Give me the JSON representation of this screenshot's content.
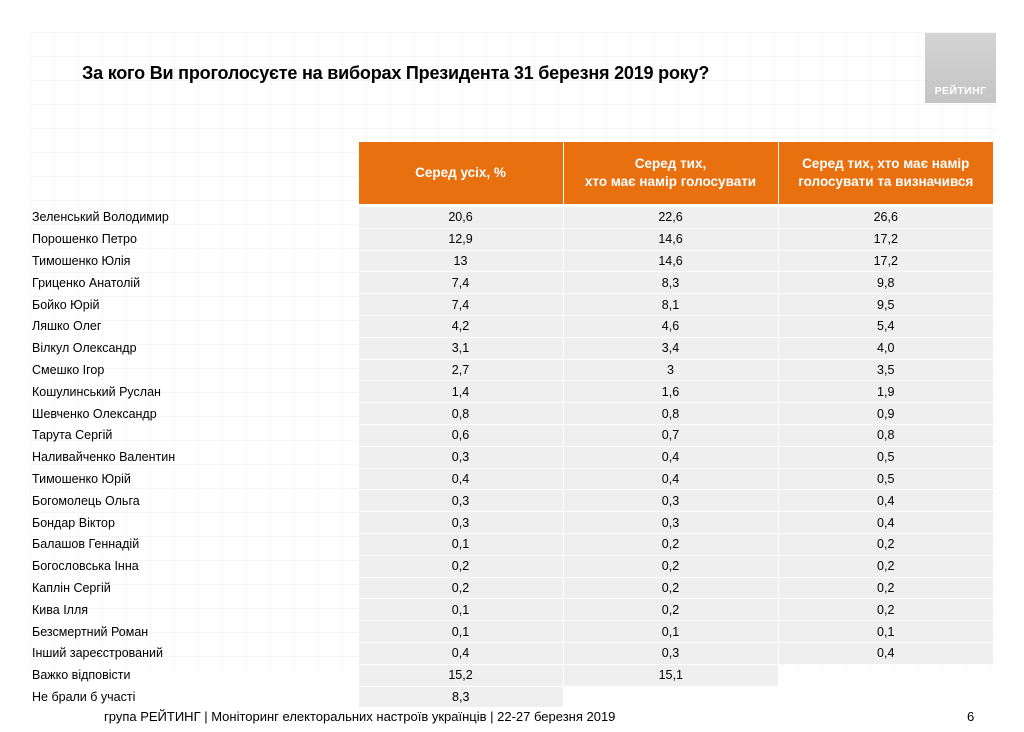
{
  "title": "За кого Ви проголосуєте на виборах Президента 31 березня 2019 року?",
  "logo_text": "РЕЙТИНГ",
  "columns": {
    "c1": "Серед усіх, %",
    "c2_line1": "Серед тих,",
    "c2_line2": "хто має намір голосувати",
    "c3_line1": "Серед тих, хто має намір",
    "c3_line2": "голосувати та визначився"
  },
  "rows": [
    {
      "name": "Зеленський Володимир",
      "all": "20,6",
      "voters": "22,6",
      "decided": "26,6"
    },
    {
      "name": "Порошенко Петро",
      "all": "12,9",
      "voters": "14,6",
      "decided": "17,2"
    },
    {
      "name": "Тимошенко Юлія",
      "all": "13",
      "voters": "14,6",
      "decided": "17,2"
    },
    {
      "name": "Гриценко Анатолій",
      "all": "7,4",
      "voters": "8,3",
      "decided": "9,8"
    },
    {
      "name": "Бойко Юрій",
      "all": "7,4",
      "voters": "8,1",
      "decided": "9,5"
    },
    {
      "name": "Ляшко Олег",
      "all": "4,2",
      "voters": "4,6",
      "decided": "5,4"
    },
    {
      "name": "Вілкул Олександр",
      "all": "3,1",
      "voters": "3,4",
      "decided": "4,0"
    },
    {
      "name": "Смешко Ігор",
      "all": "2,7",
      "voters": "3",
      "decided": "3,5"
    },
    {
      "name": "Кошулинський Руслан",
      "all": "1,4",
      "voters": "1,6",
      "decided": "1,9"
    },
    {
      "name": "Шевченко Олександр",
      "all": "0,8",
      "voters": "0,8",
      "decided": "0,9"
    },
    {
      "name": "Тарута Сергій",
      "all": "0,6",
      "voters": "0,7",
      "decided": "0,8"
    },
    {
      "name": "Наливайченко Валентин",
      "all": "0,3",
      "voters": "0,4",
      "decided": "0,5"
    },
    {
      "name": "Тимошенко Юрій",
      "all": "0,4",
      "voters": "0,4",
      "decided": "0,5"
    },
    {
      "name": "Богомолець Ольга",
      "all": "0,3",
      "voters": "0,3",
      "decided": "0,4"
    },
    {
      "name": "Бондар Віктор",
      "all": "0,3",
      "voters": "0,3",
      "decided": "0,4"
    },
    {
      "name": "Балашов Геннадій",
      "all": "0,1",
      "voters": "0,2",
      "decided": "0,2"
    },
    {
      "name": "Богословська Інна",
      "all": "0,2",
      "voters": "0,2",
      "decided": "0,2"
    },
    {
      "name": "Каплін Сергій",
      "all": "0,2",
      "voters": "0,2",
      "decided": "0,2"
    },
    {
      "name": "Кива Ілля",
      "all": "0,1",
      "voters": "0,2",
      "decided": "0,2"
    },
    {
      "name": "Безсмертний Роман",
      "all": "0,1",
      "voters": "0,1",
      "decided": "0,1"
    },
    {
      "name": "Інший зареєстрований",
      "all": "0,4",
      "voters": "0,3",
      "decided": "0,4"
    },
    {
      "name": "Важко відповісти",
      "all": "15,2",
      "voters": "15,1",
      "decided": ""
    },
    {
      "name": "Не брали б участі",
      "all": "8,3",
      "voters": "",
      "decided": ""
    }
  ],
  "footer": "група РЕЙТИНГ | Моніторинг електоральних настроїв українців  |  22-27 березня 2019",
  "page_number": "6"
}
